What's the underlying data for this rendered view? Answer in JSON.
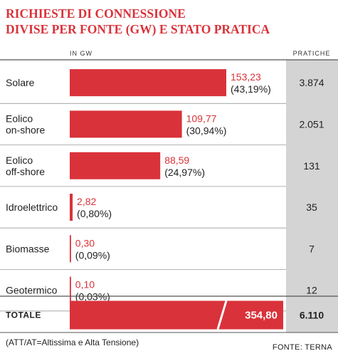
{
  "title_lines": [
    "RICHIESTE DI CONNESSIONE",
    "DIVISE PER FONTE (GW) E STATO PRATICA"
  ],
  "colors": {
    "accent": "#d9323a",
    "column_bg": "#d4d4d4",
    "rule": "#555555"
  },
  "chart_data": {
    "type": "bar",
    "title": "RICHIESTE DI CONNESSIONE DIVISE PER FONTE (GW) E STATO PRATICA",
    "value_header": "IN GW",
    "count_header": "PRATICHE",
    "categories": [
      [
        "Solare"
      ],
      [
        "Eolico",
        "on-shore"
      ],
      [
        "Eolico",
        "off-shore"
      ],
      [
        "Idroelettrico"
      ],
      [
        "Biomasse"
      ],
      [
        "Geotermico"
      ]
    ],
    "values": [
      153.23,
      109.77,
      88.59,
      2.82,
      0.3,
      0.1
    ],
    "value_labels": [
      "153,23",
      "109,77",
      "88,59",
      "2,82",
      "0,30",
      "0,10"
    ],
    "percent_labels": [
      "(43,19%)",
      "(30,94%)",
      "(24,97%)",
      "(0,80%)",
      "(0,09%)",
      "(0,03%)"
    ],
    "pratiche": [
      "3.874",
      "2.051",
      "131",
      "35",
      "7",
      "12"
    ],
    "total": {
      "label": "TOTALE",
      "value": 354.8,
      "value_label": "354,80",
      "pratiche": "6.110"
    }
  },
  "footnote": "(ATT/AT=Altissima e Alta Tensione)",
  "source": "FONTE: TERNA"
}
